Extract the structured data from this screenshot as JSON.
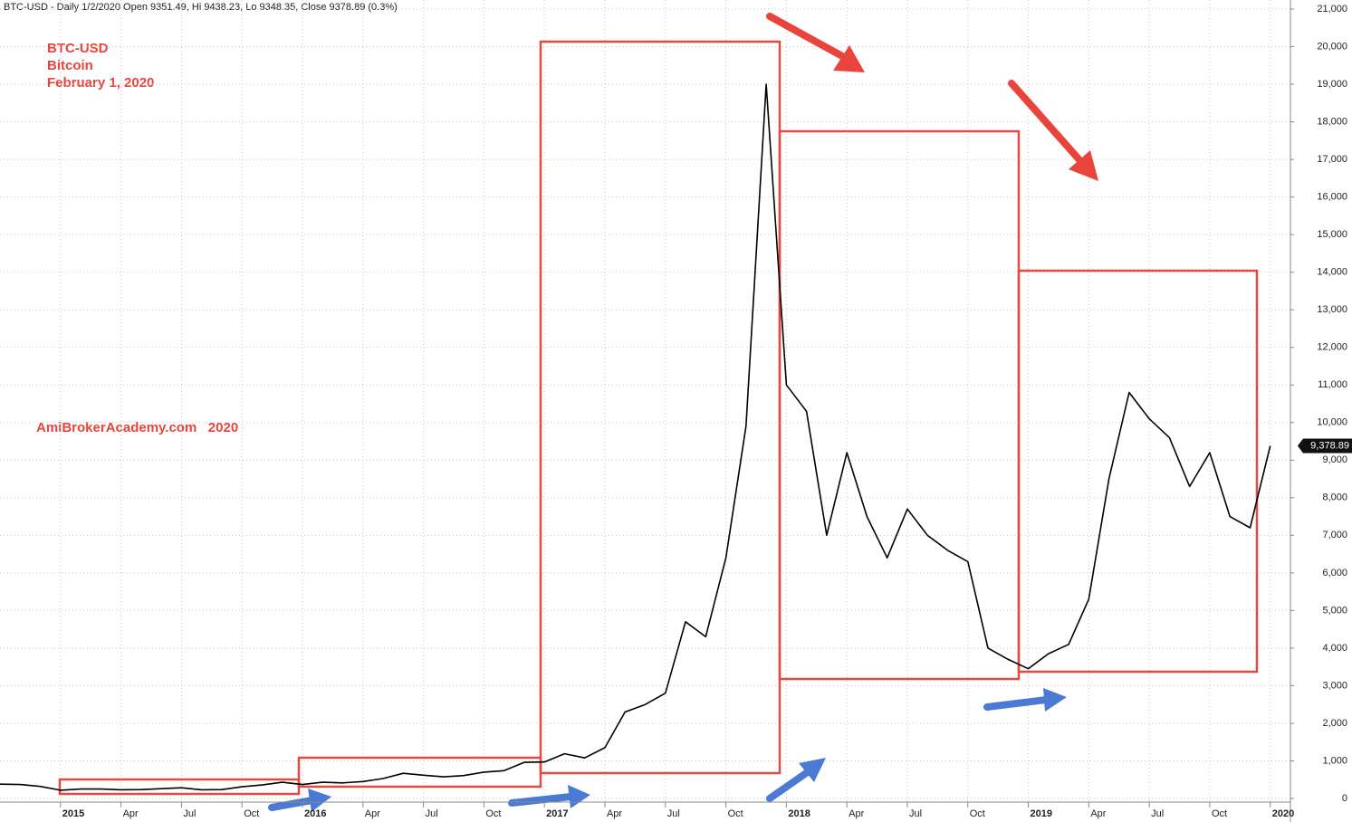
{
  "chart_data": {
    "type": "line",
    "subtitle": "BTC-USD - Daily 1/2/2020 Open 9351.49, Hi 9438.23, Lo 9348.35, Close 9378.89 (0.3%)",
    "annotations": [
      "BTC-USD",
      "Bitcoin",
      "February 1, 2020",
      "AmiBrokerAcademy.com   2020"
    ],
    "color": "#000000",
    "x": [
      "2014-10",
      "2014-11",
      "2014-12",
      "2015-01",
      "2015-02",
      "2015-03",
      "2015-04",
      "2015-05",
      "2015-06",
      "2015-07",
      "2015-08",
      "2015-09",
      "2015-10",
      "2015-11",
      "2015-12",
      "2016-01",
      "2016-02",
      "2016-03",
      "2016-04",
      "2016-05",
      "2016-06",
      "2016-07",
      "2016-08",
      "2016-09",
      "2016-10",
      "2016-11",
      "2016-12",
      "2017-01",
      "2017-02",
      "2017-03",
      "2017-04",
      "2017-05",
      "2017-06",
      "2017-07",
      "2017-08",
      "2017-09",
      "2017-10",
      "2017-11",
      "2017-12",
      "2018-01",
      "2018-02",
      "2018-03",
      "2018-04",
      "2018-05",
      "2018-06",
      "2018-07",
      "2018-08",
      "2018-09",
      "2018-10",
      "2018-11",
      "2018-12",
      "2019-01",
      "2019-02",
      "2019-03",
      "2019-04",
      "2019-05",
      "2019-06",
      "2019-07",
      "2019-08",
      "2019-09",
      "2019-10",
      "2019-11",
      "2019-12",
      "2020-01"
    ],
    "values": [
      380,
      370,
      320,
      220,
      250,
      250,
      230,
      235,
      260,
      285,
      230,
      235,
      310,
      360,
      430,
      370,
      430,
      415,
      450,
      530,
      670,
      620,
      575,
      610,
      700,
      740,
      960,
      970,
      1190,
      1080,
      1350,
      2300,
      2500,
      2800,
      4700,
      4300,
      6400,
      9900,
      19000,
      11000,
      10300,
      7000,
      9200,
      7500,
      6400,
      7700,
      7000,
      6600,
      6300,
      4000,
      3700,
      3450,
      3850,
      4100,
      5300,
      8500,
      10800,
      10100,
      9600,
      8300,
      9200,
      7500,
      7200,
      9378.89
    ],
    "last_price": {
      "value": 9378.89,
      "label": "9,378.89"
    },
    "xlim": [
      "2014-10",
      "2020-02"
    ],
    "xticks": [
      {
        "value": "2015-01",
        "label": "2015"
      },
      {
        "value": "2015-04",
        "label": "Apr"
      },
      {
        "value": "2015-07",
        "label": "Jul"
      },
      {
        "value": "2015-10",
        "label": "Oct"
      },
      {
        "value": "2016-01",
        "label": "2016"
      },
      {
        "value": "2016-04",
        "label": "Apr"
      },
      {
        "value": "2016-07",
        "label": "Jul"
      },
      {
        "value": "2016-10",
        "label": "Oct"
      },
      {
        "value": "2017-01",
        "label": "2017"
      },
      {
        "value": "2017-04",
        "label": "Apr"
      },
      {
        "value": "2017-07",
        "label": "Jul"
      },
      {
        "value": "2017-10",
        "label": "Oct"
      },
      {
        "value": "2018-01",
        "label": "2018"
      },
      {
        "value": "2018-04",
        "label": "Apr"
      },
      {
        "value": "2018-07",
        "label": "Jul"
      },
      {
        "value": "2018-10",
        "label": "Oct"
      },
      {
        "value": "2019-01",
        "label": "2019"
      },
      {
        "value": "2019-04",
        "label": "Apr"
      },
      {
        "value": "2019-07",
        "label": "Jul"
      },
      {
        "value": "2019-10",
        "label": "Oct"
      },
      {
        "value": "2020-01",
        "label": "2020"
      }
    ],
    "ylim": [
      0,
      21000
    ],
    "yticks": [
      0,
      {
        "value": 1000,
        "label": "1,000"
      },
      {
        "value": 2000,
        "label": "2,000"
      },
      {
        "value": 3000,
        "label": "3,000"
      },
      {
        "value": 4000,
        "label": "4,000"
      },
      {
        "value": 5000,
        "label": "5,000"
      },
      {
        "value": 6000,
        "label": "6,000"
      },
      {
        "value": 7000,
        "label": "7,000"
      },
      {
        "value": 8000,
        "label": "8,000"
      },
      {
        "value": 9000,
        "label": "9,000"
      },
      {
        "value": 10000,
        "label": "10,000"
      },
      {
        "value": 11000,
        "label": "11,000"
      },
      {
        "value": 12000,
        "label": "12,000"
      },
      {
        "value": 13000,
        "label": "13,000"
      },
      {
        "value": 14000,
        "label": "14,000"
      },
      {
        "value": 15000,
        "label": "15,000"
      },
      {
        "value": 16000,
        "label": "16,000"
      },
      {
        "value": 17000,
        "label": "17,000"
      },
      {
        "value": 18000,
        "label": "18,000"
      },
      {
        "value": 19000,
        "label": "19,000"
      },
      {
        "value": 20000,
        "label": "20,000"
      },
      {
        "value": 21000,
        "label": "21,000"
      }
    ],
    "grid": true
  }
}
